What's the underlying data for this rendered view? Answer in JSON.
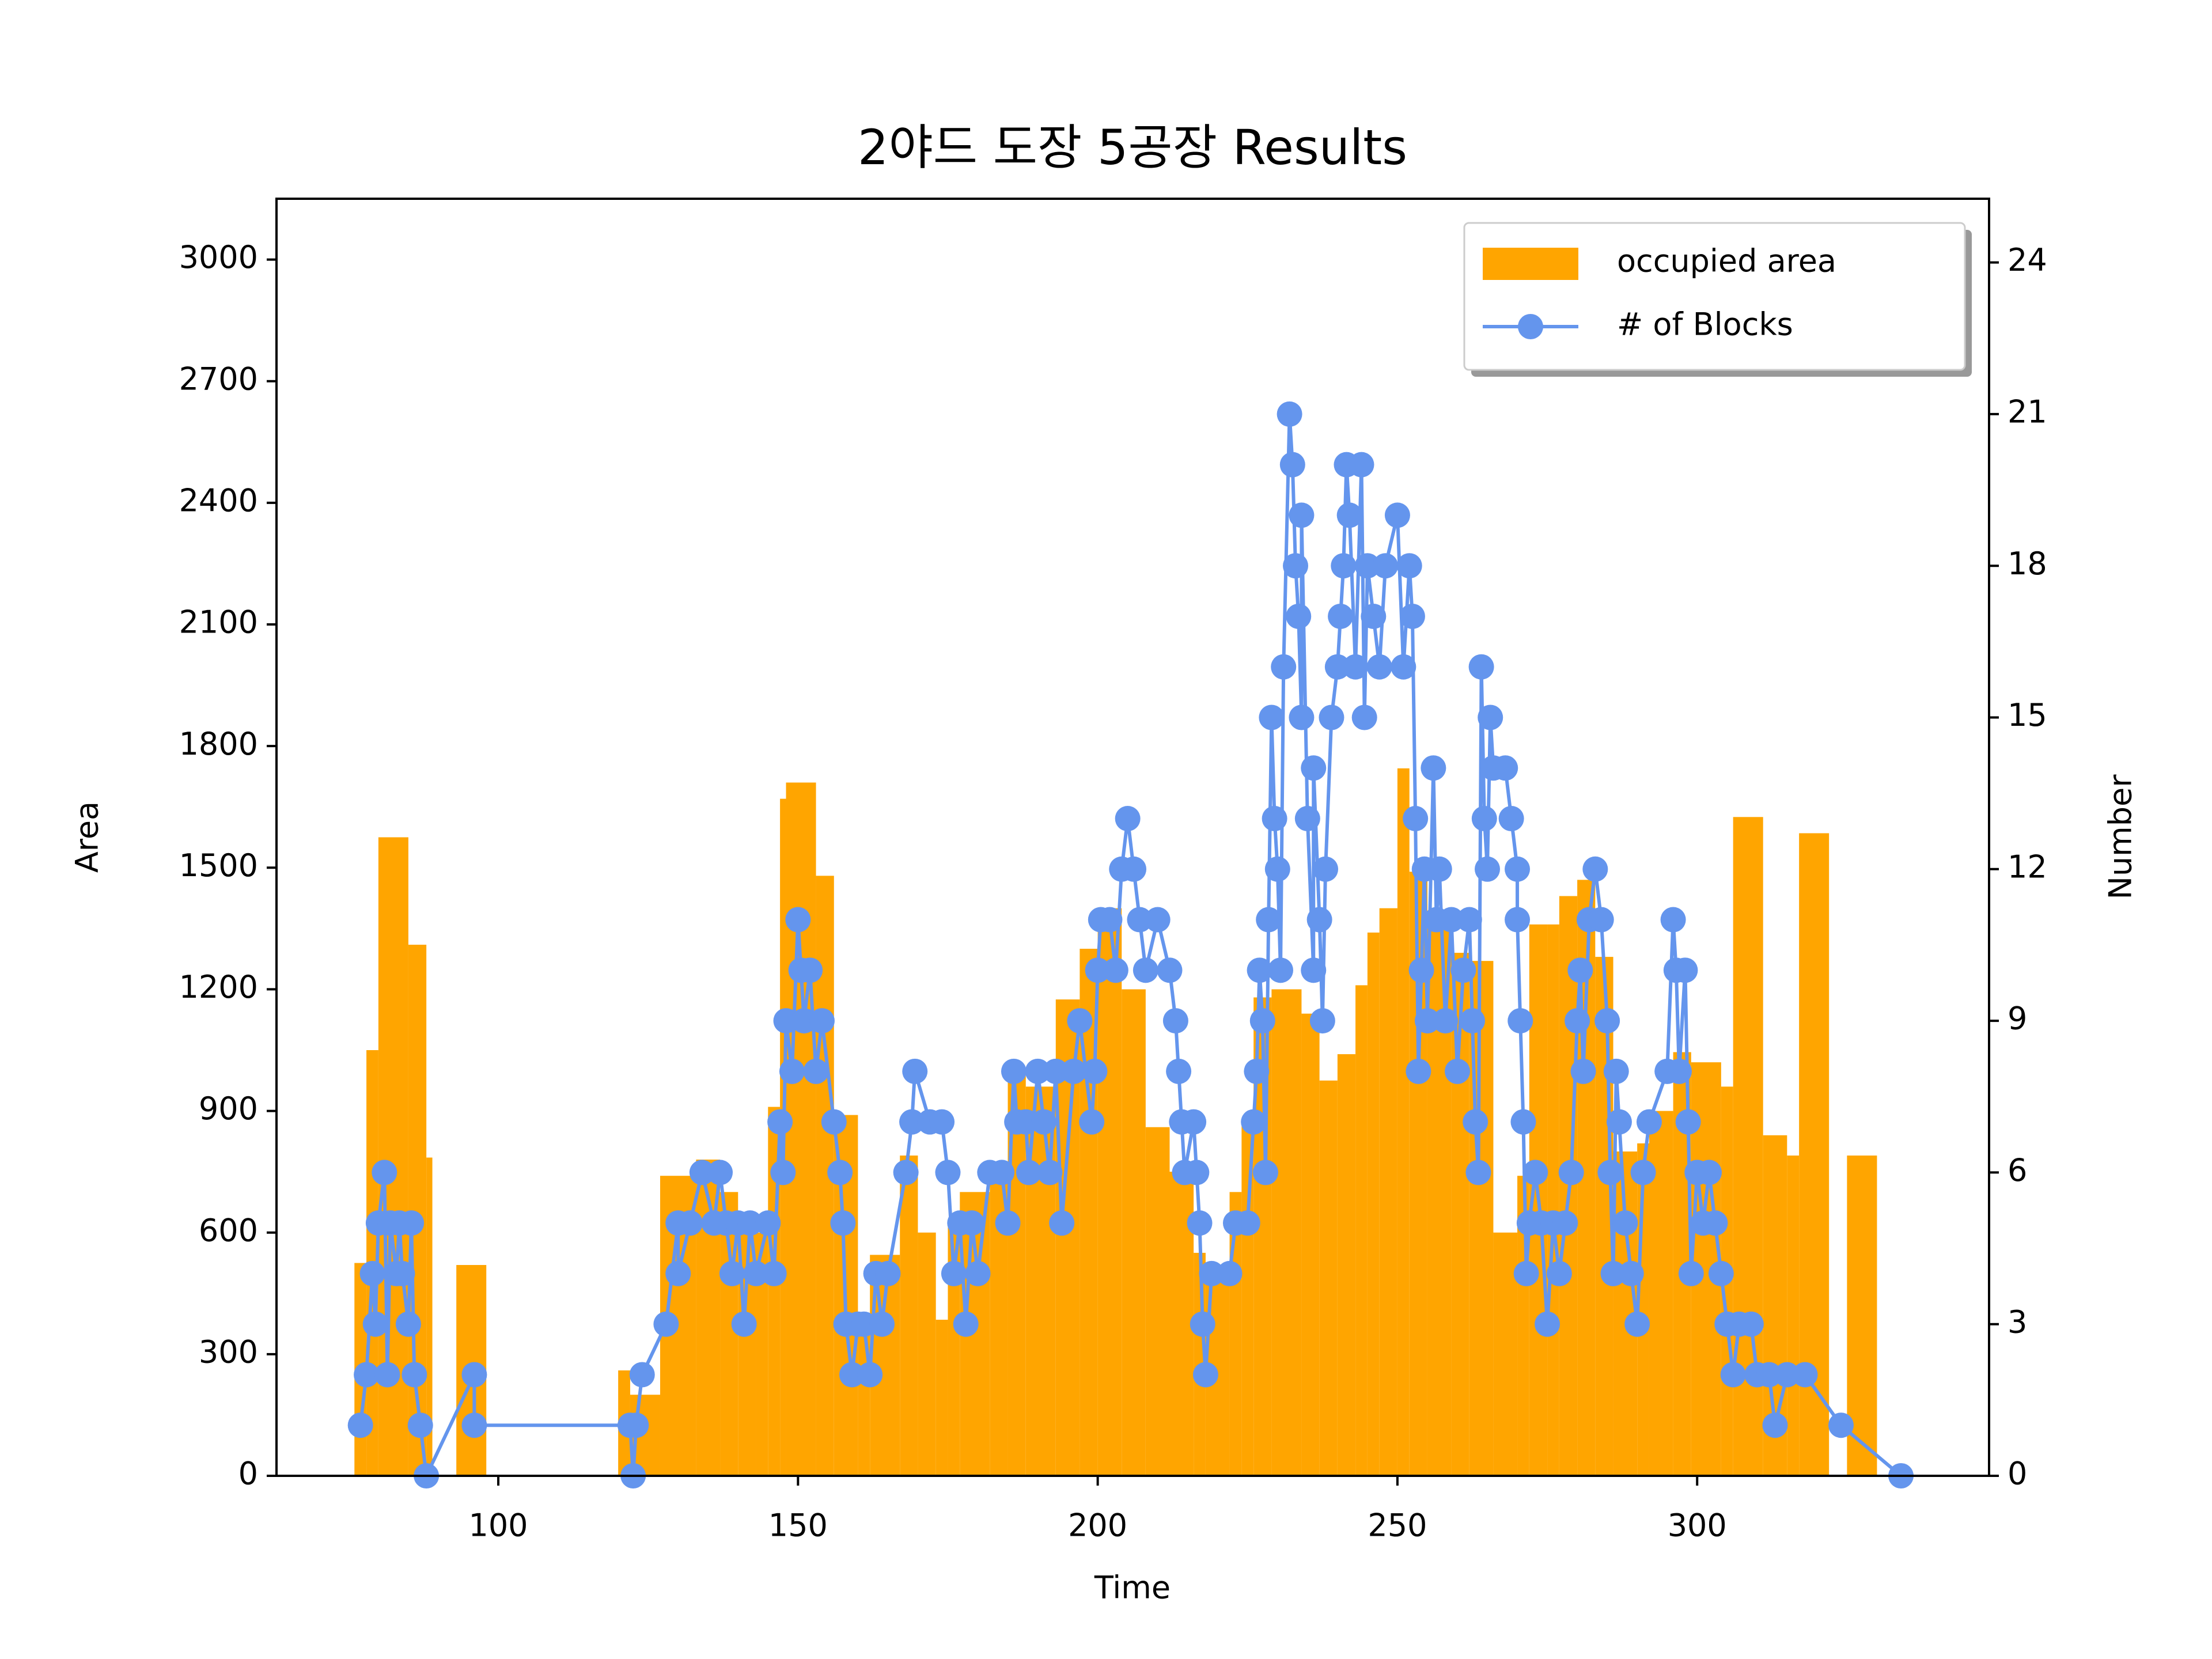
{
  "chart_data": {
    "type": "histogram",
    "title": "2야드 도장 5공장 Results",
    "x_label": "Time",
    "y_label": "Area",
    "y2_label": "Number",
    "xlim": [
      63,
      348.7
    ],
    "xticks": [
      100,
      150,
      200,
      250,
      300
    ],
    "ylim": [
      0,
      3150
    ],
    "yticks": [
      0,
      300,
      600,
      900,
      1200,
      1500,
      1800,
      2100,
      2400,
      2700,
      3000
    ],
    "y2lim": [
      0,
      25.26
    ],
    "y2ticks": [
      0,
      3,
      6,
      9,
      12,
      15,
      18,
      21,
      24
    ],
    "legend": "upper right",
    "series": [
      {
        "name": "occupied area",
        "type": "bar",
        "color": "#ffa500",
        "bins": [
          76,
          78,
          80,
          85,
          88,
          89,
          93,
          98,
          120,
          122,
          127,
          133,
          137,
          140,
          143,
          145,
          147,
          148,
          153,
          156,
          160,
          162,
          167,
          170,
          173,
          175,
          177,
          182,
          185,
          188,
          193,
          197,
          200,
          204,
          208,
          212,
          216,
          218,
          222,
          224,
          226,
          229,
          234,
          237,
          240,
          243,
          245,
          247,
          250,
          252,
          255,
          259,
          262,
          266,
          270,
          272,
          275,
          277,
          280,
          283,
          286,
          290,
          292,
          296,
          299,
          304,
          306,
          311,
          315,
          317,
          322,
          325,
          330
        ],
        "counts": [
          525,
          1050,
          1575,
          1310,
          785,
          0,
          520,
          0,
          260,
          200,
          740,
          780,
          700,
          600,
          600,
          910,
          1670,
          1710,
          1480,
          890,
          400,
          545,
          790,
          600,
          385,
          620,
          700,
          760,
          1000,
          960,
          1175,
          1300,
          1400,
          1200,
          860,
          750,
          550,
          500,
          700,
          880,
          1180,
          1200,
          1140,
          975,
          1040,
          1210,
          1340,
          1400,
          1745,
          1490,
          1390,
          1290,
          1270,
          600,
          740,
          1360,
          1360,
          1430,
          1470,
          1280,
          800,
          820,
          900,
          1045,
          1020,
          960,
          1625,
          840,
          790,
          1585,
          0,
          790
        ]
      },
      {
        "name": "# of Blocks",
        "type": "line",
        "axis": "y2",
        "color": "#6495ed",
        "x": [
          77,
          78,
          79,
          79.5,
          80,
          81,
          81.5,
          82,
          83,
          83.5,
          84,
          85,
          85.5,
          86,
          87,
          88,
          96,
          96,
          122,
          122.5,
          123,
          124,
          128,
          130,
          130,
          132,
          134,
          136,
          137,
          138,
          139,
          140,
          141,
          142,
          143,
          145,
          146,
          147,
          147.5,
          148,
          149,
          150,
          150.5,
          151,
          152,
          153,
          154,
          156,
          157,
          157.5,
          158,
          159,
          160,
          161,
          162,
          163,
          164,
          165,
          168,
          169,
          169.5,
          172,
          174,
          175,
          176,
          177,
          178,
          179,
          180,
          182,
          184,
          185,
          186,
          186.5,
          188,
          188.5,
          190,
          191,
          192,
          193,
          194,
          196,
          197,
          199,
          199.5,
          200,
          200.5,
          202,
          203,
          204,
          205,
          206,
          207,
          208,
          210,
          212,
          213,
          213.5,
          214,
          214.5,
          216,
          216.5,
          217,
          217.5,
          218,
          219,
          222,
          223,
          225,
          226,
          226.5,
          227,
          227.5,
          228,
          228.5,
          229,
          229.5,
          230,
          230.5,
          231,
          232,
          232.5,
          233,
          233.5,
          234,
          234,
          235,
          236,
          236,
          237,
          237.5,
          238,
          239,
          240,
          240.5,
          241,
          241.5,
          242,
          243,
          244,
          244.5,
          245,
          246,
          247,
          248,
          250,
          251,
          252,
          252.5,
          253,
          253.5,
          254,
          254.5,
          255,
          256,
          256.5,
          257,
          258,
          259,
          260,
          261,
          262,
          262.5,
          263,
          263.5,
          264,
          264.5,
          265,
          265.5,
          266,
          268,
          269,
          270,
          270,
          270.5,
          271,
          271.5,
          272,
          273,
          274,
          275,
          276,
          277,
          278,
          279,
          280,
          280.5,
          281,
          282,
          283,
          284,
          285,
          285.5,
          286,
          286.5,
          287,
          288,
          289,
          290,
          291,
          292,
          295,
          296,
          296.5,
          297,
          298,
          298.5,
          299,
          300,
          301,
          302,
          303,
          304,
          305,
          306,
          307,
          309,
          310,
          312,
          313,
          315,
          318,
          324,
          334
        ],
        "values": [
          1,
          2,
          4,
          3,
          5,
          6,
          2,
          5,
          4,
          5,
          4,
          3,
          5,
          2,
          1,
          0,
          2,
          1,
          1,
          0,
          1,
          2,
          3,
          5,
          4,
          5,
          6,
          5,
          6,
          5,
          4,
          5,
          3,
          5,
          4,
          5,
          4,
          7,
          6,
          9,
          8,
          11,
          10,
          9,
          10,
          8,
          9,
          7,
          6,
          5,
          3,
          2,
          3,
          3,
          2,
          4,
          3,
          4,
          6,
          7,
          8,
          7,
          7,
          6,
          4,
          5,
          3,
          5,
          4,
          6,
          6,
          5,
          8,
          7,
          7,
          6,
          8,
          7,
          6,
          8,
          5,
          8,
          9,
          7,
          8,
          10,
          11,
          11,
          10,
          12,
          13,
          12,
          11,
          10,
          11,
          10,
          9,
          8,
          7,
          6,
          7,
          6,
          5,
          3,
          2,
          4,
          4,
          5,
          5,
          7,
          8,
          10,
          9,
          6,
          11,
          15,
          13,
          12,
          10,
          16,
          21,
          20,
          18,
          17,
          15,
          19,
          13,
          10,
          14,
          11,
          9,
          12,
          15,
          16,
          17,
          18,
          20,
          19,
          16,
          20,
          15,
          18,
          17,
          16,
          18,
          19,
          16,
          18,
          17,
          13,
          8,
          10,
          12,
          9,
          14,
          11,
          12,
          9,
          11,
          8,
          10,
          11,
          9,
          7,
          6,
          16,
          13,
          12,
          15,
          14,
          14,
          13,
          12,
          11,
          9,
          7,
          4,
          5,
          6,
          5,
          3,
          5,
          4,
          5,
          6,
          9,
          10,
          8,
          11,
          12,
          11,
          9,
          6,
          4,
          8,
          7,
          5,
          4,
          3,
          6,
          7,
          8,
          11,
          10,
          8,
          10,
          7,
          4,
          6,
          5,
          6,
          5,
          4,
          3,
          2,
          3,
          3,
          2,
          2,
          1,
          2,
          2,
          1,
          0
        ]
      }
    ]
  }
}
